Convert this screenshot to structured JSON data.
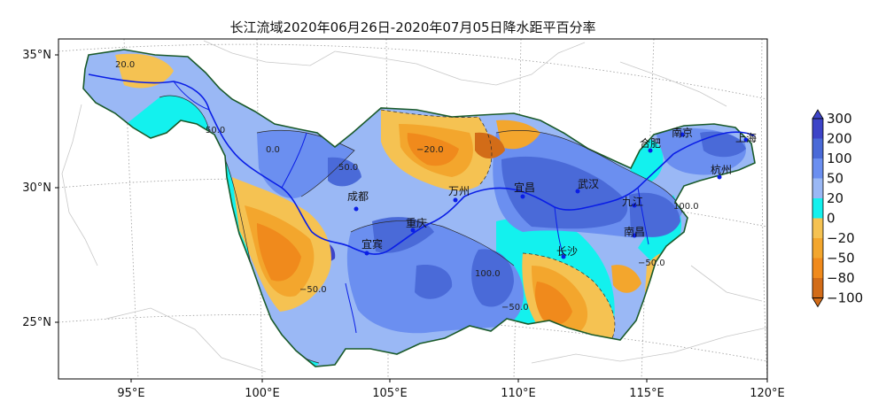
{
  "title": "长江流域2020年06月26日-2020年07月05日降水距平百分率",
  "axes": {
    "lon_ticks": [
      "95°E",
      "100°E",
      "105°E",
      "110°E",
      "115°E",
      "120°E"
    ],
    "lat_ticks": [
      "35°N",
      "30°N",
      "25°N"
    ]
  },
  "colorbar": {
    "labels": [
      "300",
      "200",
      "100",
      "50",
      "20",
      "0",
      "−20",
      "−50",
      "−80",
      "−100"
    ],
    "colors": [
      "#3d44c8",
      "#4a6ad8",
      "#6b8ff0",
      "#9ab8f5",
      "#13f1ee",
      "#f5c252",
      "#f3a62d",
      "#f08a1c",
      "#d26c18"
    ]
  },
  "cities": [
    "成都",
    "重庆",
    "宜宾",
    "万州",
    "宜昌",
    "武汉",
    "长沙",
    "九江",
    "南昌",
    "合肥",
    "南京",
    "上海",
    "杭州"
  ],
  "contour_labels": [
    "20.0",
    "50.0",
    "100.0",
    "0.0",
    "−20.0",
    "−50.0"
  ]
}
